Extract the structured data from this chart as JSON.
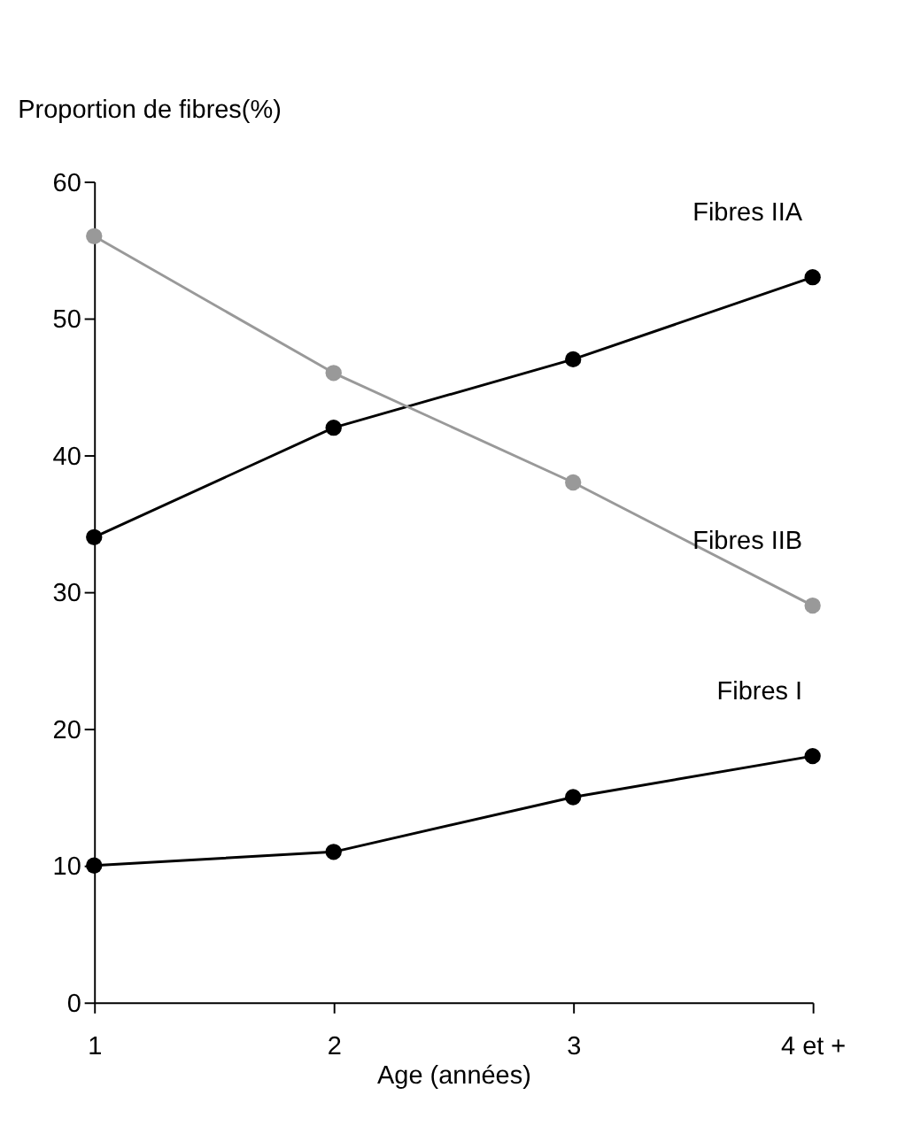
{
  "chart_data": {
    "type": "line",
    "ylabel": "Proportion de fibres(%)",
    "xlabel": "Age (années)",
    "categories": [
      "1",
      "2",
      "3",
      "4 et +"
    ],
    "series": [
      {
        "name": "Fibres IIA",
        "color": "#000000",
        "values": [
          34,
          42,
          47,
          53
        ]
      },
      {
        "name": "Fibres IIB",
        "color": "#999999",
        "values": [
          56,
          46,
          38,
          29
        ]
      },
      {
        "name": "Fibres I",
        "color": "#000000",
        "values": [
          10,
          11,
          15,
          18
        ]
      }
    ],
    "ylim": [
      0,
      60
    ],
    "yticks": [
      0,
      10,
      20,
      30,
      40,
      50,
      60
    ],
    "grid": false,
    "legend": false,
    "marker": "circle",
    "line_style": "solid"
  }
}
